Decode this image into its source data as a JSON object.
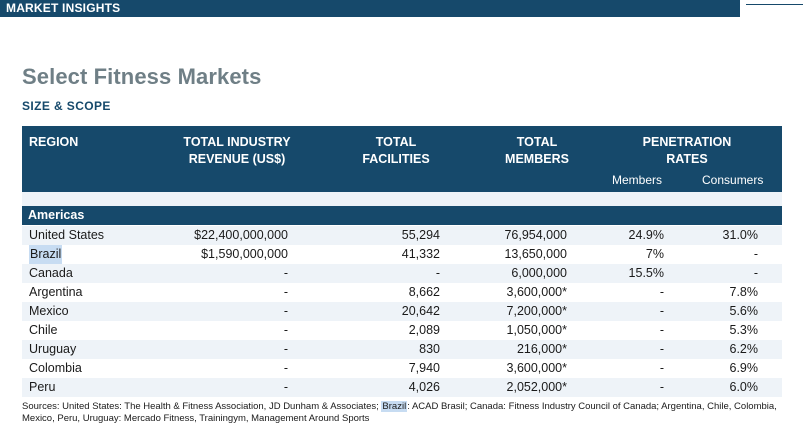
{
  "banner": {
    "label": "MARKET INSIGHTS"
  },
  "title": "Select Fitness Markets",
  "subtitle": "SIZE & SCOPE",
  "table": {
    "headers": {
      "region": "REGION",
      "revenue_line1": "TOTAL INDUSTRY",
      "revenue_line2": "REVENUE (US$)",
      "facilities_line1": "TOTAL",
      "facilities_line2": "FACILITIES",
      "members_line1": "TOTAL",
      "members_line2": "MEMBERS",
      "penetration_line1": "PENETRATION",
      "penetration_line2": "RATES",
      "penetration_members": "Members",
      "penetration_consumers": "Consumers"
    },
    "group": "Americas",
    "rows": [
      {
        "region": "United States",
        "revenue": "$22,400,000,000",
        "facilities": "55,294",
        "members": "76,954,000",
        "pen_members": "24.9%",
        "pen_consumers": "31.0%"
      },
      {
        "region": "Brazil",
        "revenue": "$1,590,000,000",
        "facilities": "41,332",
        "members": "13,650,000",
        "pen_members": "7%",
        "pen_consumers": "-"
      },
      {
        "region": "Canada",
        "revenue": "-",
        "facilities": "-",
        "members": "6,000,000",
        "pen_members": "15.5%",
        "pen_consumers": "-"
      },
      {
        "region": "Argentina",
        "revenue": "-",
        "facilities": "8,662",
        "members": "3,600,000*",
        "pen_members": "-",
        "pen_consumers": "7.8%"
      },
      {
        "region": "Mexico",
        "revenue": "-",
        "facilities": "20,642",
        "members": "7,200,000*",
        "pen_members": "-",
        "pen_consumers": "5.6%"
      },
      {
        "region": "Chile",
        "revenue": "-",
        "facilities": "2,089",
        "members": "1,050,000*",
        "pen_members": "-",
        "pen_consumers": "5.3%"
      },
      {
        "region": "Uruguay",
        "revenue": "-",
        "facilities": "830",
        "members": "216,000*",
        "pen_members": "-",
        "pen_consumers": "6.2%"
      },
      {
        "region": "Colombia",
        "revenue": "-",
        "facilities": "7,940",
        "members": "3,600,000*",
        "pen_members": "-",
        "pen_consumers": "6.9%"
      },
      {
        "region": "Peru",
        "revenue": "-",
        "facilities": "4,026",
        "members": "2,052,000*",
        "pen_members": "-",
        "pen_consumers": "6.0%"
      }
    ]
  },
  "sources": {
    "part1": "Sources: United States: The Health & Fitness Association, JD Dunham & Associates; ",
    "highlight": "Brazil",
    "part2": ": ACAD Brasil; Canada: Fitness Industry Council of Canada; Argentina, Chile, Colombia,",
    "line2": "Mexico, Peru, Uruguay: Mercado Fitness,  Trainingym, Management Around Sports"
  },
  "colors": {
    "navy": "#16496b",
    "title_gray": "#6f7f86",
    "row_tint": "#eef3f8",
    "highlight": "#c7dcf2"
  }
}
